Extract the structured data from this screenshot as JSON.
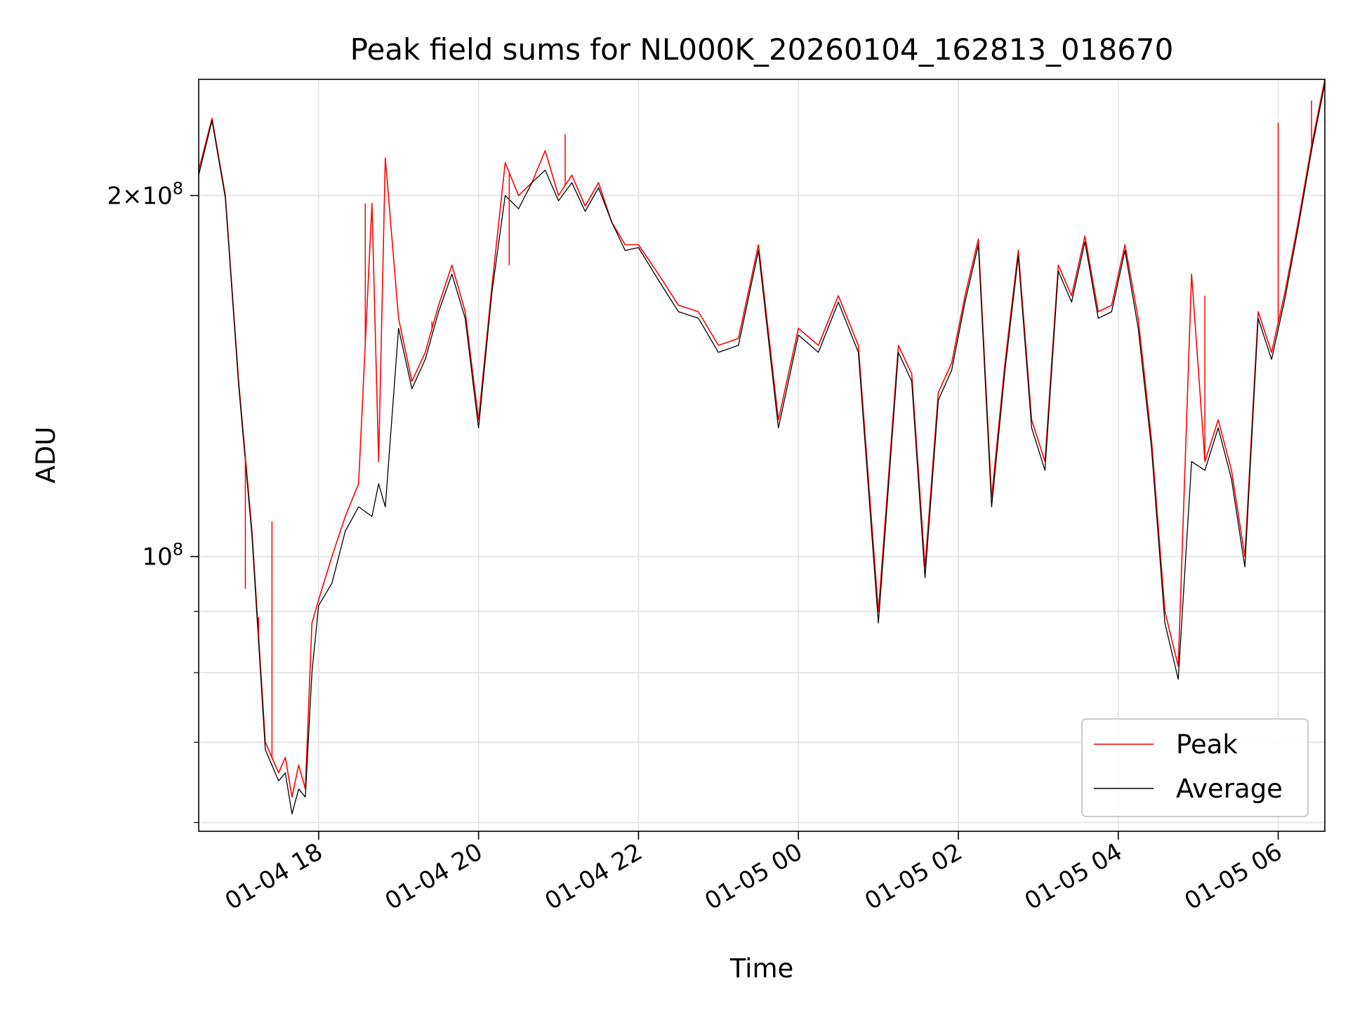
{
  "chart_data": {
    "type": "line",
    "title": "Peak field sums for NL000K_20260104_162813_018670",
    "xlabel": "Time",
    "ylabel": "ADU",
    "y_scale": "log",
    "grid": true,
    "legend_position": "lower-right",
    "xlim": [
      "2026-01-04 16:30",
      "2026-01-05 06:35"
    ],
    "ylim": [
      59000000,
      250000000
    ],
    "x_ticks": [
      {
        "t": "2026-01-04 18:00",
        "label": "01-04 18"
      },
      {
        "t": "2026-01-04 20:00",
        "label": "01-04 20"
      },
      {
        "t": "2026-01-04 22:00",
        "label": "01-04 22"
      },
      {
        "t": "2026-01-05 00:00",
        "label": "01-05 00"
      },
      {
        "t": "2026-01-05 02:00",
        "label": "01-05 02"
      },
      {
        "t": "2026-01-05 04:00",
        "label": "01-05 04"
      },
      {
        "t": "2026-01-05 06:00",
        "label": "01-05 06"
      }
    ],
    "y_major_ticks": [
      {
        "value": 100000000,
        "label": "10^8",
        "mantissa": "",
        "exp": "8"
      },
      {
        "value": 200000000,
        "label": "2 × 10^8",
        "mantissa": "2×10",
        "exp": "8"
      }
    ],
    "y_minor_ticks": [
      60000000,
      70000000,
      80000000,
      90000000
    ],
    "series": [
      {
        "name": "Peak",
        "color": "#ff0000",
        "x": [
          "2026-01-04 16:30",
          "2026-01-04 16:40",
          "2026-01-04 16:50",
          "2026-01-04 17:00",
          "2026-01-04 17:10",
          "2026-01-04 17:20",
          "2026-01-04 17:30",
          "2026-01-04 17:35",
          "2026-01-04 17:40",
          "2026-01-04 17:45",
          "2026-01-04 17:50",
          "2026-01-04 17:55",
          "2026-01-04 18:00",
          "2026-01-04 18:10",
          "2026-01-04 18:20",
          "2026-01-04 18:30",
          "2026-01-04 18:40",
          "2026-01-04 18:45",
          "2026-01-04 18:50",
          "2026-01-04 19:00",
          "2026-01-04 19:10",
          "2026-01-04 19:20",
          "2026-01-04 19:30",
          "2026-01-04 19:40",
          "2026-01-04 19:50",
          "2026-01-04 20:00",
          "2026-01-04 20:10",
          "2026-01-04 20:20",
          "2026-01-04 20:30",
          "2026-01-04 20:40",
          "2026-01-04 20:50",
          "2026-01-04 21:00",
          "2026-01-04 21:10",
          "2026-01-04 21:20",
          "2026-01-04 21:30",
          "2026-01-04 21:40",
          "2026-01-04 21:50",
          "2026-01-04 22:00",
          "2026-01-04 22:15",
          "2026-01-04 22:30",
          "2026-01-04 22:45",
          "2026-01-04 23:00",
          "2026-01-04 23:15",
          "2026-01-04 23:30",
          "2026-01-04 23:45",
          "2026-01-05 00:00",
          "2026-01-05 00:15",
          "2026-01-05 00:30",
          "2026-01-05 00:45",
          "2026-01-05 01:00",
          "2026-01-05 01:15",
          "2026-01-05 01:25",
          "2026-01-05 01:35",
          "2026-01-05 01:45",
          "2026-01-05 01:55",
          "2026-01-05 02:05",
          "2026-01-05 02:15",
          "2026-01-05 02:25",
          "2026-01-05 02:35",
          "2026-01-05 02:45",
          "2026-01-05 02:55",
          "2026-01-05 03:05",
          "2026-01-05 03:15",
          "2026-01-05 03:25",
          "2026-01-05 03:35",
          "2026-01-05 03:45",
          "2026-01-05 03:55",
          "2026-01-05 04:05",
          "2026-01-05 04:15",
          "2026-01-05 04:25",
          "2026-01-05 04:35",
          "2026-01-05 04:45",
          "2026-01-05 04:55",
          "2026-01-05 05:05",
          "2026-01-05 05:15",
          "2026-01-05 05:25",
          "2026-01-05 05:35",
          "2026-01-05 05:45",
          "2026-01-05 05:55",
          "2026-01-05 06:05",
          "2026-01-05 06:15",
          "2026-01-05 06:25",
          "2026-01-05 06:35"
        ],
        "values": [
          210000000,
          232000000,
          200000000,
          140000000,
          105000000,
          70000000,
          66000000,
          68000000,
          63000000,
          67000000,
          64000000,
          88000000,
          92000000,
          100000000,
          108000000,
          115000000,
          197000000,
          120000000,
          215000000,
          158000000,
          140000000,
          148000000,
          162000000,
          175000000,
          160000000,
          130000000,
          168000000,
          213000000,
          200000000,
          205000000,
          218000000,
          200000000,
          208000000,
          196000000,
          205000000,
          190000000,
          182000000,
          182000000,
          172000000,
          162000000,
          160000000,
          150000000,
          152000000,
          182000000,
          130000000,
          155000000,
          150000000,
          165000000,
          150000000,
          90000000,
          150000000,
          142000000,
          98000000,
          137000000,
          145000000,
          165000000,
          184000000,
          112000000,
          145000000,
          180000000,
          130000000,
          120000000,
          175000000,
          165000000,
          185000000,
          160000000,
          162000000,
          182000000,
          158000000,
          125000000,
          90000000,
          81000000,
          172000000,
          120000000,
          130000000,
          118000000,
          100000000,
          160000000,
          148000000,
          166000000,
          190000000,
          220000000,
          250000000
        ]
      },
      {
        "name": "Average",
        "color": "#000000",
        "x": [
          "2026-01-04 16:30",
          "2026-01-04 16:40",
          "2026-01-04 16:50",
          "2026-01-04 17:00",
          "2026-01-04 17:10",
          "2026-01-04 17:20",
          "2026-01-04 17:30",
          "2026-01-04 17:35",
          "2026-01-04 17:40",
          "2026-01-04 17:45",
          "2026-01-04 17:50",
          "2026-01-04 17:55",
          "2026-01-04 18:00",
          "2026-01-04 18:10",
          "2026-01-04 18:20",
          "2026-01-04 18:30",
          "2026-01-04 18:40",
          "2026-01-04 18:45",
          "2026-01-04 18:50",
          "2026-01-04 19:00",
          "2026-01-04 19:10",
          "2026-01-04 19:20",
          "2026-01-04 19:30",
          "2026-01-04 19:40",
          "2026-01-04 19:50",
          "2026-01-04 20:00",
          "2026-01-04 20:10",
          "2026-01-04 20:20",
          "2026-01-04 20:30",
          "2026-01-04 20:40",
          "2026-01-04 20:50",
          "2026-01-04 21:00",
          "2026-01-04 21:10",
          "2026-01-04 21:20",
          "2026-01-04 21:30",
          "2026-01-04 21:40",
          "2026-01-04 21:50",
          "2026-01-04 22:00",
          "2026-01-04 22:15",
          "2026-01-04 22:30",
          "2026-01-04 22:45",
          "2026-01-04 23:00",
          "2026-01-04 23:15",
          "2026-01-04 23:30",
          "2026-01-04 23:45",
          "2026-01-05 00:00",
          "2026-01-05 00:15",
          "2026-01-05 00:30",
          "2026-01-05 00:45",
          "2026-01-05 01:00",
          "2026-01-05 01:15",
          "2026-01-05 01:25",
          "2026-01-05 01:35",
          "2026-01-05 01:45",
          "2026-01-05 01:55",
          "2026-01-05 02:05",
          "2026-01-05 02:15",
          "2026-01-05 02:25",
          "2026-01-05 02:35",
          "2026-01-05 02:45",
          "2026-01-05 02:55",
          "2026-01-05 03:05",
          "2026-01-05 03:15",
          "2026-01-05 03:25",
          "2026-01-05 03:35",
          "2026-01-05 03:45",
          "2026-01-05 03:55",
          "2026-01-05 04:05",
          "2026-01-05 04:15",
          "2026-01-05 04:25",
          "2026-01-05 04:35",
          "2026-01-05 04:45",
          "2026-01-05 04:55",
          "2026-01-05 05:05",
          "2026-01-05 05:15",
          "2026-01-05 05:25",
          "2026-01-05 05:35",
          "2026-01-05 05:45",
          "2026-01-05 05:55",
          "2026-01-05 06:05",
          "2026-01-05 06:15",
          "2026-01-05 06:25",
          "2026-01-05 06:35"
        ],
        "values": [
          208000000,
          231000000,
          199000000,
          139000000,
          104000000,
          69000000,
          65000000,
          66000000,
          61000000,
          64000000,
          63000000,
          80000000,
          91000000,
          95000000,
          105000000,
          110000000,
          108000000,
          115000000,
          110000000,
          155000000,
          138000000,
          146000000,
          160000000,
          172000000,
          158000000,
          128000000,
          166000000,
          200000000,
          195000000,
          205000000,
          210000000,
          198000000,
          205000000,
          194000000,
          203000000,
          190000000,
          180000000,
          181000000,
          170000000,
          160000000,
          158000000,
          148000000,
          150000000,
          180000000,
          128000000,
          153000000,
          148000000,
          163000000,
          148000000,
          88000000,
          148000000,
          140000000,
          96000000,
          135000000,
          143000000,
          163000000,
          182000000,
          110000000,
          143000000,
          178000000,
          128000000,
          118000000,
          173000000,
          163000000,
          183000000,
          158000000,
          160000000,
          180000000,
          155000000,
          123000000,
          88000000,
          79000000,
          120000000,
          118000000,
          128000000,
          116000000,
          98000000,
          158000000,
          146000000,
          164000000,
          188000000,
          218000000,
          248000000
        ]
      }
    ],
    "notable_spikes": [
      {
        "series": "Peak",
        "t": "2026-01-04 17:05",
        "value": 94000000
      },
      {
        "series": "Peak",
        "t": "2026-01-04 17:15",
        "value": 89000000
      },
      {
        "series": "Peak",
        "t": "2026-01-04 17:25",
        "value": 107000000
      },
      {
        "series": "Peak",
        "t": "2026-01-04 18:35",
        "value": 197000000
      },
      {
        "series": "Peak",
        "t": "2026-01-04 18:50",
        "value": 215000000
      },
      {
        "series": "Peak",
        "t": "2026-01-04 19:25",
        "value": 157000000
      },
      {
        "series": "Peak",
        "t": "2026-01-04 20:23",
        "value": 175000000
      },
      {
        "series": "Peak",
        "t": "2026-01-04 21:05",
        "value": 225000000
      },
      {
        "series": "Peak",
        "t": "2026-01-05 05:05",
        "value": 165000000
      },
      {
        "series": "Peak",
        "t": "2026-01-05 06:00",
        "value": 230000000
      },
      {
        "series": "Peak",
        "t": "2026-01-05 06:25",
        "value": 240000000
      }
    ]
  }
}
